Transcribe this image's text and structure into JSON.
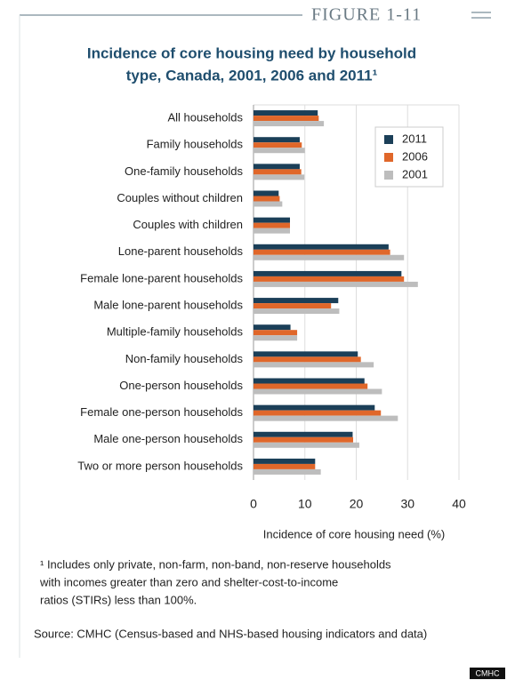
{
  "figure_label": "FIGURE 1-11",
  "chart_data": {
    "type": "hbar",
    "title": [
      "Incidence of core housing need by household",
      "type, Canada, 2001, 2006 and 2011¹"
    ],
    "categories": [
      "All households",
      "Family households",
      "One-family households",
      "Couples without children",
      "Couples with children",
      "Lone-parent households",
      "Female lone-parent households",
      "Male lone-parent households",
      "Multiple-family households",
      "Non-family households",
      "One-person households",
      "Female one-person households",
      "Male one-person households",
      "Two or more person households"
    ],
    "series": [
      {
        "name": "2011",
        "color": "#1b3f58",
        "values": [
          12.5,
          9.0,
          9.0,
          4.9,
          7.1,
          26.3,
          28.8,
          16.5,
          7.2,
          20.3,
          21.6,
          23.6,
          19.3,
          12.0
        ]
      },
      {
        "name": "2006",
        "color": "#e0672a",
        "values": [
          12.7,
          9.4,
          9.3,
          5.1,
          7.1,
          26.6,
          29.3,
          15.1,
          8.5,
          20.9,
          22.2,
          24.8,
          19.4,
          12.0
        ]
      },
      {
        "name": "2001",
        "color": "#bdbdbd",
        "values": [
          13.7,
          10.0,
          9.9,
          5.6,
          7.1,
          29.3,
          32.0,
          16.7,
          8.5,
          23.4,
          25.0,
          28.1,
          20.6,
          13.1
        ]
      }
    ],
    "xlabel": "Incidence of core housing need (%)",
    "xlim": [
      0,
      40
    ],
    "xticks": [
      0,
      10,
      20,
      30,
      40
    ],
    "grid": true,
    "legend": "upper-right"
  },
  "footnote": [
    "¹ Includes only private, non-farm, non-band, non-reserve households",
    "with incomes greater than zero and shelter-cost-to-income",
    "ratios (STIRs) less than 100%."
  ],
  "source": "Source: CMHC (Census-based and NHS-based housing indicators and data)",
  "credit": "CMHC"
}
